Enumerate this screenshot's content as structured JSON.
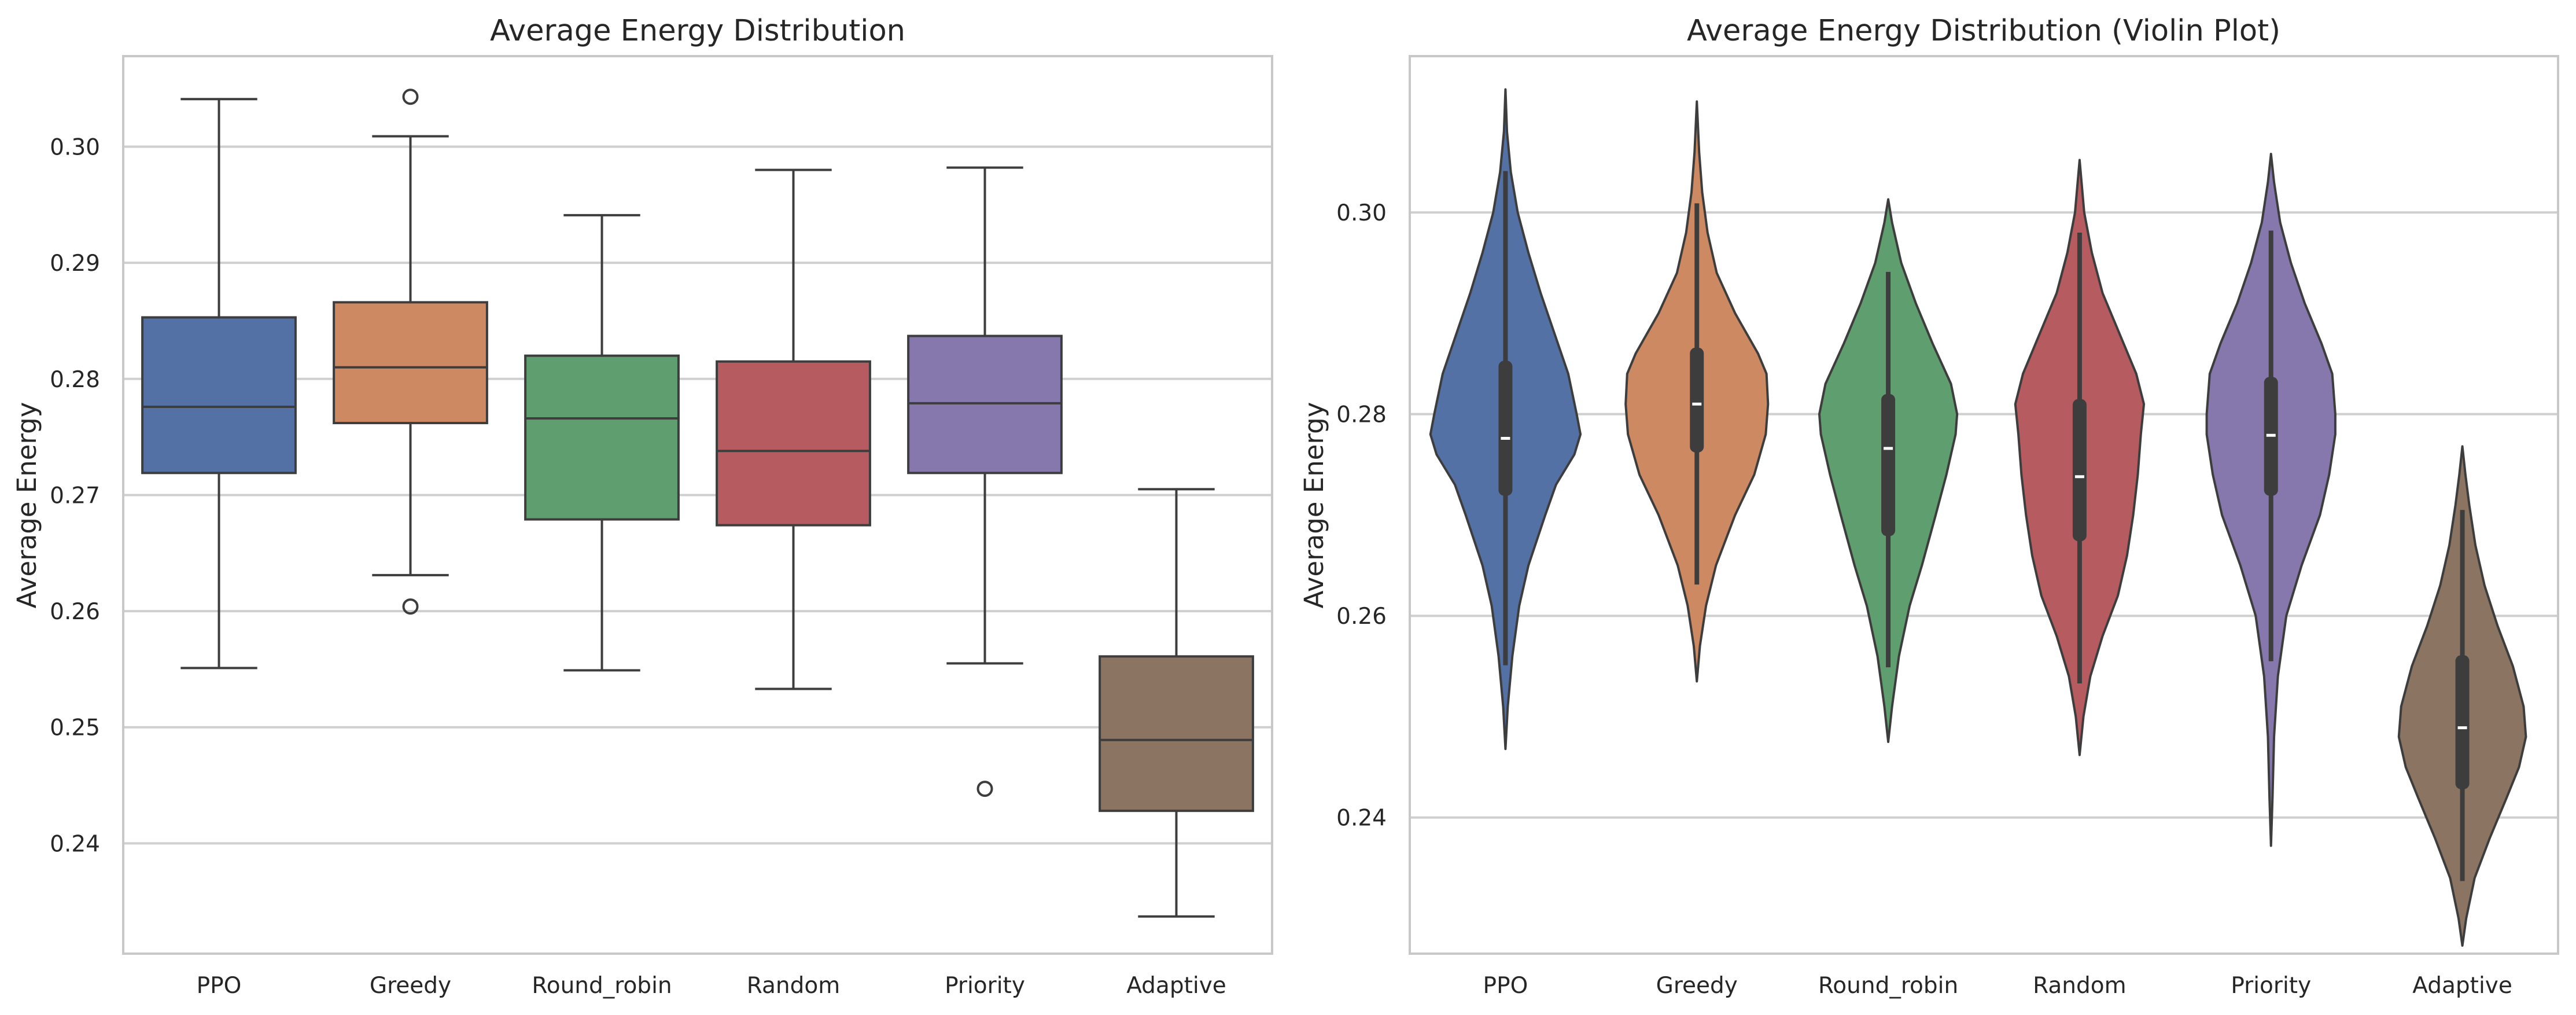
{
  "colors": {
    "PPO": "#5471a5",
    "Greedy": "#cd8961",
    "Round_robin": "#5f9e6e",
    "Random": "#b65b5f",
    "Priority": "#8678ad",
    "Adaptive": "#8b7462",
    "grid": "#cfcfcf",
    "frame": "#c8c8c8",
    "line": "#3d3d3d"
  },
  "chart_data": [
    {
      "type": "box",
      "title": "Average Energy Distribution",
      "xlabel": "",
      "ylabel": "Average Energy",
      "ylim": [
        0.2305,
        0.3078
      ],
      "yticks": [
        "0.24",
        "0.25",
        "0.26",
        "0.27",
        "0.28",
        "0.29",
        "0.30"
      ],
      "grid": true,
      "categories": [
        "PPO",
        "Greedy",
        "Round_robin",
        "Random",
        "Priority",
        "Adaptive"
      ],
      "boxes": [
        {
          "min": 0.2551,
          "q1": 0.2719,
          "median": 0.2776,
          "q3": 0.2853,
          "max": 0.3041,
          "outliers": []
        },
        {
          "min": 0.2631,
          "q1": 0.2762,
          "median": 0.281,
          "q3": 0.2866,
          "max": 0.3009,
          "outliers": [
            0.3043,
            0.2604
          ]
        },
        {
          "min": 0.2549,
          "q1": 0.2679,
          "median": 0.2766,
          "q3": 0.282,
          "max": 0.2941,
          "outliers": []
        },
        {
          "min": 0.2533,
          "q1": 0.2674,
          "median": 0.2738,
          "q3": 0.2815,
          "max": 0.298,
          "outliers": []
        },
        {
          "min": 0.2555,
          "q1": 0.2719,
          "median": 0.2779,
          "q3": 0.2837,
          "max": 0.2982,
          "outliers": [
            0.2447
          ]
        },
        {
          "min": 0.2337,
          "q1": 0.2428,
          "median": 0.2489,
          "q3": 0.2561,
          "max": 0.2705,
          "outliers": []
        }
      ]
    },
    {
      "type": "violin",
      "title": "Average Energy Distribution (Violin Plot)",
      "xlabel": "",
      "ylabel": "Average Energy",
      "ylim": [
        0.2265,
        0.3155
      ],
      "yticks": [
        "0.24",
        "0.26",
        "0.28",
        "0.30"
      ],
      "grid": true,
      "categories": [
        "PPO",
        "Greedy",
        "Round_robin",
        "Random",
        "Priority",
        "Adaptive"
      ],
      "violins": [
        {
          "min": 0.2551,
          "q1": 0.2719,
          "median": 0.2776,
          "q3": 0.2853,
          "max": 0.3041,
          "profile": [
            [
              0.2468,
              0.0
            ],
            [
              0.251,
              0.03
            ],
            [
              0.256,
              0.09
            ],
            [
              0.261,
              0.18
            ],
            [
              0.265,
              0.3
            ],
            [
              0.27,
              0.52
            ],
            [
              0.273,
              0.66
            ],
            [
              0.276,
              0.9
            ],
            [
              0.278,
              0.98
            ],
            [
              0.28,
              0.93
            ],
            [
              0.284,
              0.82
            ],
            [
              0.288,
              0.64
            ],
            [
              0.292,
              0.46
            ],
            [
              0.296,
              0.3
            ],
            [
              0.3,
              0.16
            ],
            [
              0.304,
              0.07
            ],
            [
              0.308,
              0.02
            ],
            [
              0.3122,
              0.0
            ]
          ]
        },
        {
          "min": 0.2631,
          "q1": 0.2762,
          "median": 0.281,
          "q3": 0.2866,
          "max": 0.3009,
          "profile": [
            [
              0.2535,
              0.0
            ],
            [
              0.257,
              0.04
            ],
            [
              0.261,
              0.12
            ],
            [
              0.265,
              0.25
            ],
            [
              0.27,
              0.5
            ],
            [
              0.274,
              0.75
            ],
            [
              0.278,
              0.9
            ],
            [
              0.281,
              0.93
            ],
            [
              0.284,
              0.91
            ],
            [
              0.286,
              0.8
            ],
            [
              0.29,
              0.5
            ],
            [
              0.294,
              0.26
            ],
            [
              0.298,
              0.14
            ],
            [
              0.302,
              0.07
            ],
            [
              0.306,
              0.03
            ],
            [
              0.311,
              0.0
            ]
          ]
        },
        {
          "min": 0.2549,
          "q1": 0.2679,
          "median": 0.2766,
          "q3": 0.282,
          "max": 0.2941,
          "profile": [
            [
              0.2475,
              0.0
            ],
            [
              0.251,
              0.05
            ],
            [
              0.256,
              0.14
            ],
            [
              0.261,
              0.28
            ],
            [
              0.265,
              0.44
            ],
            [
              0.27,
              0.62
            ],
            [
              0.274,
              0.76
            ],
            [
              0.278,
              0.88
            ],
            [
              0.28,
              0.9
            ],
            [
              0.283,
              0.82
            ],
            [
              0.287,
              0.58
            ],
            [
              0.291,
              0.36
            ],
            [
              0.295,
              0.17
            ],
            [
              0.299,
              0.05
            ],
            [
              0.3013,
              0.0
            ]
          ]
        },
        {
          "min": 0.2533,
          "q1": 0.2674,
          "median": 0.2738,
          "q3": 0.2815,
          "max": 0.298,
          "profile": [
            [
              0.2462,
              0.0
            ],
            [
              0.25,
              0.05
            ],
            [
              0.254,
              0.14
            ],
            [
              0.258,
              0.3
            ],
            [
              0.262,
              0.5
            ],
            [
              0.266,
              0.62
            ],
            [
              0.27,
              0.7
            ],
            [
              0.274,
              0.76
            ],
            [
              0.278,
              0.8
            ],
            [
              0.281,
              0.84
            ],
            [
              0.284,
              0.74
            ],
            [
              0.288,
              0.52
            ],
            [
              0.292,
              0.3
            ],
            [
              0.296,
              0.16
            ],
            [
              0.3,
              0.06
            ],
            [
              0.3052,
              0.0
            ]
          ]
        },
        {
          "min": 0.2555,
          "q1": 0.2719,
          "median": 0.2779,
          "q3": 0.2837,
          "max": 0.2982,
          "profile": [
            [
              0.2372,
              0.0
            ],
            [
              0.242,
              0.02
            ],
            [
              0.248,
              0.04
            ],
            [
              0.254,
              0.09
            ],
            [
              0.26,
              0.2
            ],
            [
              0.265,
              0.4
            ],
            [
              0.27,
              0.64
            ],
            [
              0.274,
              0.76
            ],
            [
              0.278,
              0.84
            ],
            [
              0.28,
              0.84
            ],
            [
              0.284,
              0.8
            ],
            [
              0.287,
              0.66
            ],
            [
              0.291,
              0.44
            ],
            [
              0.295,
              0.26
            ],
            [
              0.299,
              0.12
            ],
            [
              0.303,
              0.04
            ],
            [
              0.3058,
              0.0
            ]
          ]
        },
        {
          "min": 0.2337,
          "q1": 0.2428,
          "median": 0.2489,
          "q3": 0.2561,
          "max": 0.2705,
          "profile": [
            [
              0.2273,
              0.0
            ],
            [
              0.23,
              0.05
            ],
            [
              0.234,
              0.16
            ],
            [
              0.238,
              0.36
            ],
            [
              0.242,
              0.58
            ],
            [
              0.245,
              0.74
            ],
            [
              0.248,
              0.83
            ],
            [
              0.251,
              0.8
            ],
            [
              0.255,
              0.66
            ],
            [
              0.259,
              0.46
            ],
            [
              0.263,
              0.29
            ],
            [
              0.267,
              0.17
            ],
            [
              0.271,
              0.09
            ],
            [
              0.274,
              0.04
            ],
            [
              0.2768,
              0.0
            ]
          ]
        }
      ]
    }
  ]
}
